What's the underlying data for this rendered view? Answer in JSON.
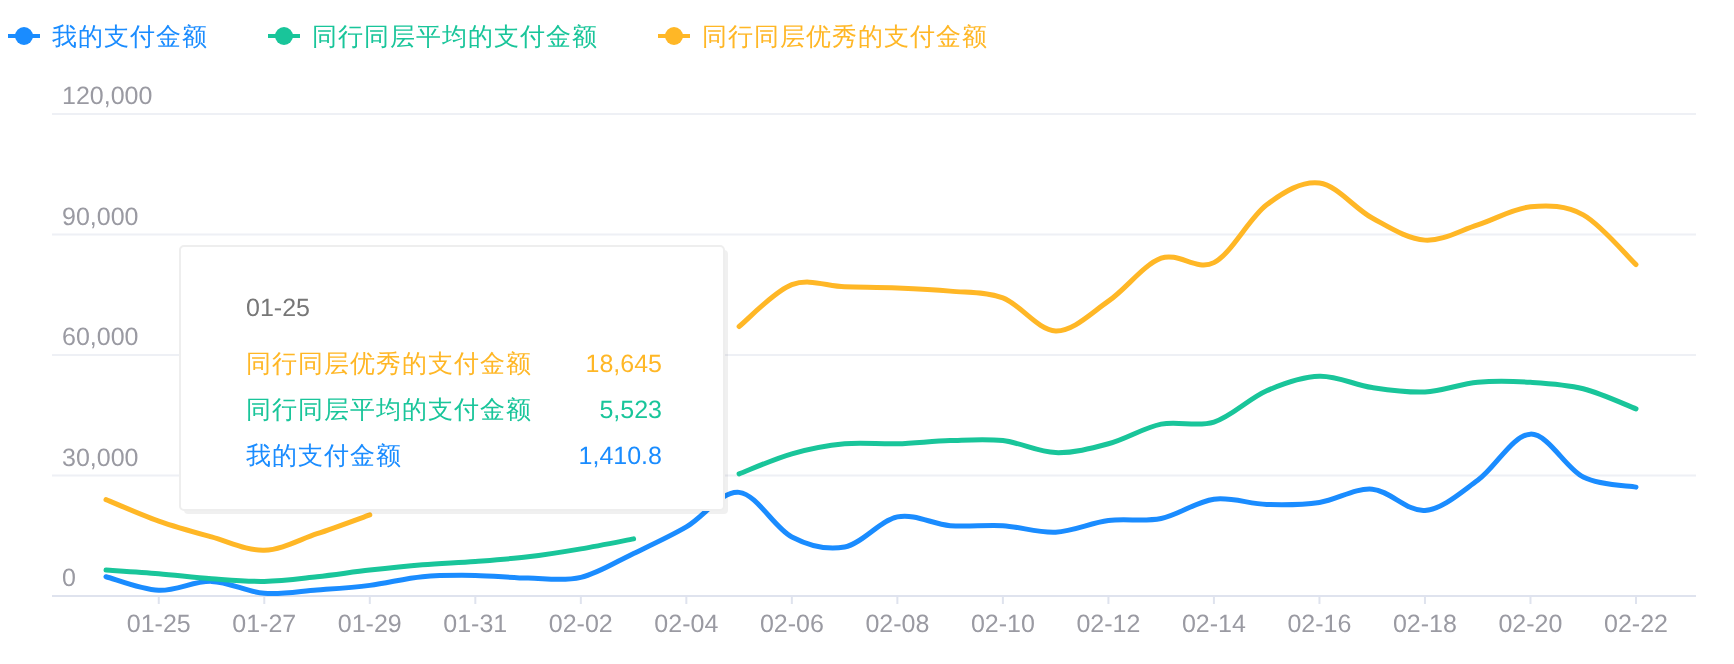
{
  "chart_data": {
    "type": "line",
    "categories": [
      null,
      "01-25",
      null,
      "01-27",
      null,
      "01-29",
      null,
      "01-31",
      null,
      "02-02",
      null,
      "02-04",
      null,
      "02-06",
      null,
      "02-08",
      null,
      "02-10",
      null,
      "02-12",
      null,
      "02-14",
      null,
      "02-16",
      null,
      "02-18",
      null,
      "02-20",
      null,
      "02-22"
    ],
    "series": [
      {
        "name": "我的支付金额",
        "color": "#1a8cff",
        "values": [
          4800,
          1410.8,
          3640,
          660,
          1490,
          2650,
          4800,
          5120,
          4460,
          4630,
          10600,
          17200,
          25800,
          14700,
          12200,
          19700,
          17500,
          17500,
          15900,
          18800,
          19300,
          24100,
          22800,
          23300,
          26600,
          21300,
          28800,
          40300,
          29600,
          27100
        ]
      },
      {
        "name": "同行同层平均的支付金额",
        "color": "#19c59a",
        "values": [
          6450,
          5523,
          4300,
          3640,
          4800,
          6450,
          7770,
          8600,
          9750,
          11740,
          14220,
          null,
          30400,
          35400,
          37900,
          37900,
          38700,
          38700,
          35700,
          37900,
          42800,
          43300,
          51100,
          54700,
          51900,
          50800,
          53200,
          53200,
          51600,
          46600
        ]
      },
      {
        "name": "同行同层优秀的支付金额",
        "color": "#ffb726",
        "values": [
          24000,
          18645,
          14700,
          11400,
          15500,
          20200,
          null,
          null,
          null,
          null,
          null,
          null,
          67100,
          77500,
          77000,
          76700,
          75900,
          74200,
          66000,
          73400,
          84100,
          83000,
          97400,
          102800,
          94100,
          88600,
          92400,
          96900,
          94900,
          82500
        ]
      }
    ],
    "ylim": [
      0,
      120000
    ],
    "yticks": [
      0,
      {
        "value": 30000,
        "label": "30,000"
      },
      {
        "value": 60000,
        "label": "60,000"
      },
      {
        "value": 90000,
        "label": "90,000"
      },
      {
        "value": 120000,
        "label": "120,000"
      }
    ],
    "grid": "y",
    "legend": "top left",
    "annotations": [
      "01-25",
      "同行同层优秀的支付金额",
      "18,645",
      "同行同层平均的支付金额",
      "5,523",
      "我的支付金额",
      "1,410.8"
    ]
  }
}
